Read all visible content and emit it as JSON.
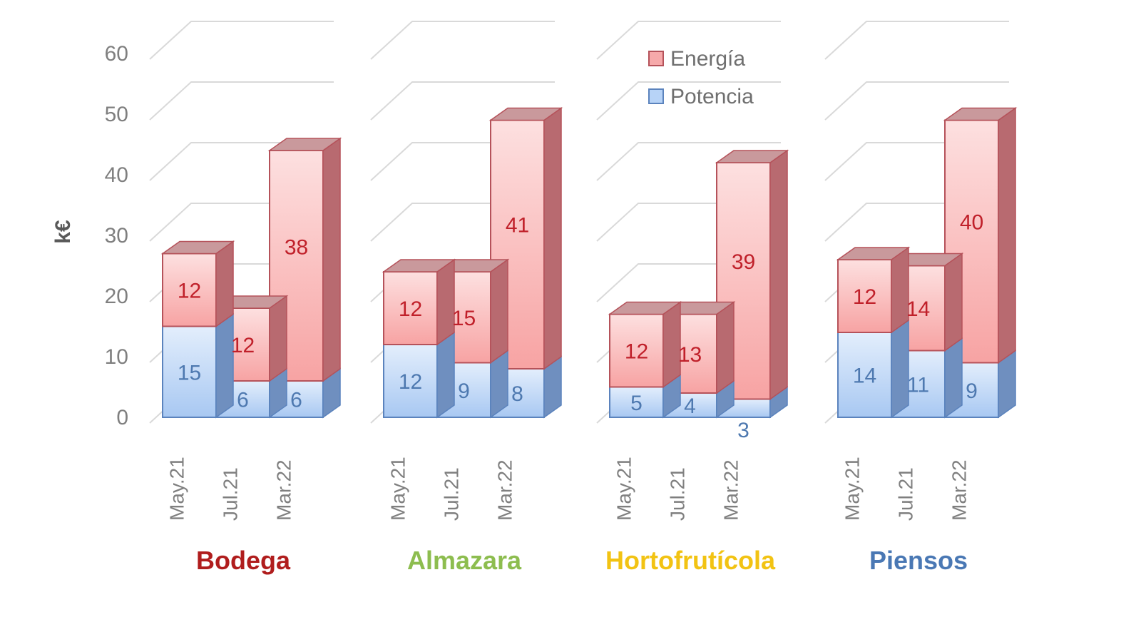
{
  "chart_data": {
    "type": "bar",
    "stacked": true,
    "style": "3d",
    "ylabel": "k€",
    "ylim": [
      0,
      60
    ],
    "yticks": [
      0,
      10,
      20,
      30,
      40,
      50,
      60
    ],
    "legend": {
      "position": "top-right",
      "entries": [
        {
          "name": "Energía",
          "color": "#f6a9aa"
        },
        {
          "name": "Potencia",
          "color": "#b7d3f7"
        }
      ]
    },
    "categories": [
      "May.21",
      "Jul.21",
      "Mar.22"
    ],
    "groups": [
      {
        "name": "Bodega",
        "color": "#b01d1d",
        "series": [
          {
            "name": "Potencia",
            "values": [
              15,
              6,
              6
            ]
          },
          {
            "name": "Energía",
            "values": [
              12,
              12,
              38
            ]
          }
        ]
      },
      {
        "name": "Almazara",
        "color": "#8dbd4f",
        "series": [
          {
            "name": "Potencia",
            "values": [
              12,
              9,
              8
            ]
          },
          {
            "name": "Energía",
            "values": [
              12,
              15,
              41
            ]
          }
        ]
      },
      {
        "name": "Hortofrutícola",
        "color": "#f2c313",
        "series": [
          {
            "name": "Potencia",
            "values": [
              5,
              4,
              3
            ]
          },
          {
            "name": "Energía",
            "values": [
              12,
              13,
              39
            ]
          }
        ]
      },
      {
        "name": "Piensos",
        "color": "#4a78b4",
        "series": [
          {
            "name": "Potencia",
            "values": [
              14,
              11,
              9
            ]
          },
          {
            "name": "Energía",
            "values": [
              12,
              14,
              40
            ]
          }
        ]
      }
    ]
  }
}
